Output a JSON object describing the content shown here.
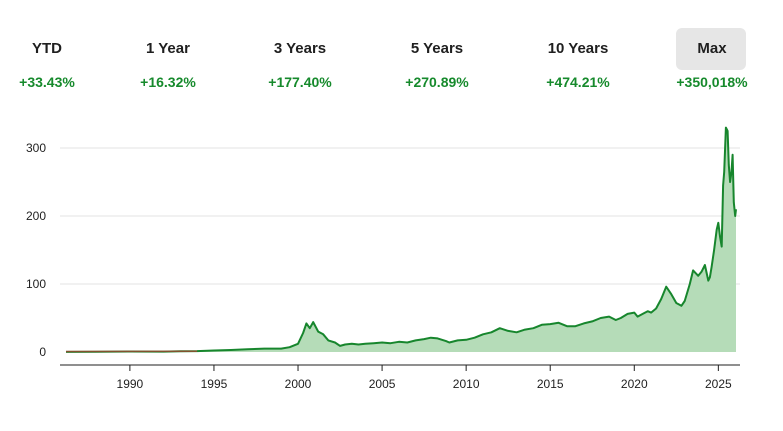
{
  "periods": [
    {
      "label": "YTD",
      "change": "+33.43%",
      "active": false
    },
    {
      "label": "1 Year",
      "change": "+16.32%",
      "active": false
    },
    {
      "label": "3 Years",
      "change": "+177.40%",
      "active": false
    },
    {
      "label": "5 Years",
      "change": "+270.89%",
      "active": false
    },
    {
      "label": "10 Years",
      "change": "+474.21%",
      "active": false
    },
    {
      "label": "Max",
      "change": "+350,018%",
      "active": true
    }
  ],
  "colors": {
    "positive": "#168a2c",
    "line": "#17862d",
    "area": "#b5dcb8",
    "early_line": "#b03a2e",
    "grid": "#e3e3e3",
    "active_tab": "#e6e6e6"
  },
  "chart_data": {
    "type": "area",
    "xlim": [
      1986.0,
      2026.1
    ],
    "ylim": [
      0,
      330
    ],
    "x_ticks": [
      1990,
      1995,
      2000,
      2005,
      2010,
      2015,
      2020,
      2025
    ],
    "x_tick_labels": [
      "1990",
      "1995",
      "2000",
      "2005",
      "2010",
      "2015",
      "2020",
      "2025"
    ],
    "y_ticks": [
      0,
      100,
      200,
      300
    ],
    "y_tick_labels": [
      "0",
      "100",
      "200",
      "300"
    ],
    "grid": true,
    "series": [
      {
        "x": [
          1986.2,
          1988,
          1990,
          1992,
          1993,
          1994,
          1995,
          1996,
          1997,
          1998,
          1999,
          1999.5,
          2000.0,
          2000.3,
          2000.5,
          2000.7,
          2000.9,
          2001.2,
          2001.5,
          2001.8,
          2002.2,
          2002.5,
          2002.8,
          2003.2,
          2003.6,
          2004.0,
          2004.5,
          2005.0,
          2005.5,
          2006.0,
          2006.5,
          2007.0,
          2007.5,
          2007.9,
          2008.3,
          2008.8,
          2009.0,
          2009.5,
          2010.0,
          2010.5,
          2011.0,
          2011.5,
          2012.0,
          2012.5,
          2013.0,
          2013.5,
          2014.0,
          2014.5,
          2015.0,
          2015.5,
          2016.0,
          2016.5,
          2017.0,
          2017.5,
          2018.0,
          2018.5,
          2018.9,
          2019.2,
          2019.6,
          2020.0,
          2020.2,
          2020.5,
          2020.8,
          2021.0,
          2021.3,
          2021.6,
          2021.9,
          2022.2,
          2022.5,
          2022.8,
          2023.0,
          2023.3,
          2023.5,
          2023.8,
          2024.0,
          2024.2,
          2024.4,
          2024.5,
          2024.6,
          2024.75,
          2024.9,
          2025.0,
          2025.1,
          2025.2,
          2025.28,
          2025.35,
          2025.45,
          2025.55,
          2025.62,
          2025.7,
          2025.78,
          2025.85,
          2025.92,
          2026.0,
          2026.05
        ],
        "values": [
          0.1,
          0.3,
          0.8,
          0.6,
          1.0,
          1.3,
          2.2,
          3.0,
          4.0,
          5.0,
          5.0,
          7.0,
          12.0,
          28.0,
          42.0,
          35.0,
          44.0,
          30.0,
          26.0,
          17.0,
          14.0,
          9.0,
          11.0,
          12.0,
          11.0,
          12.0,
          13.0,
          14.0,
          13.0,
          15.0,
          14.0,
          17.0,
          19.0,
          21.0,
          20.0,
          16.0,
          14.0,
          17.0,
          18.0,
          21.0,
          26.0,
          29.0,
          35.0,
          31.0,
          29.0,
          33.0,
          35.0,
          40.0,
          41.0,
          43.0,
          38.0,
          38.0,
          42.0,
          45.0,
          50.0,
          52.0,
          47.0,
          50.0,
          56.0,
          58.0,
          52.0,
          56.0,
          60.0,
          58.0,
          64.0,
          78.0,
          96.0,
          85.0,
          72.0,
          68.0,
          75.0,
          100.0,
          120.0,
          112.0,
          118.0,
          128.0,
          105.0,
          110.0,
          125.0,
          150.0,
          180.0,
          190.0,
          170.0,
          155.0,
          245.0,
          265.0,
          330.0,
          325.0,
          275.0,
          250.0,
          265.0,
          290.0,
          220.0,
          200.0,
          210.0
        ]
      }
    ]
  }
}
